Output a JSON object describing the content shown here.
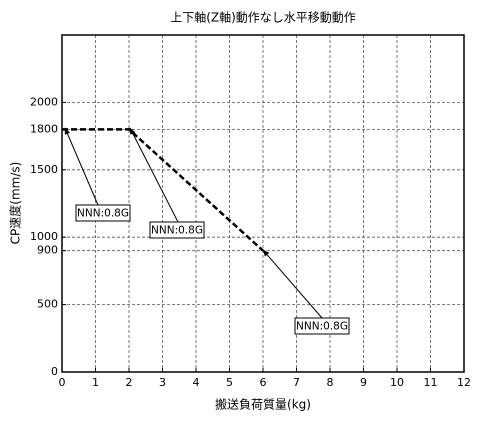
{
  "chart_data": {
    "type": "line",
    "title": "上下軸(Z軸)動作なし水平移動動作",
    "x_label": "搬送負荷質量(kg)",
    "y_label": "CP速度(mm/s)",
    "x": [
      0,
      2,
      6
    ],
    "series": [
      {
        "color": "#000000",
        "values": [
          1800,
          1800,
          900
        ]
      }
    ],
    "xlim": [
      0,
      12
    ],
    "xticks": [
      0,
      1,
      2,
      3,
      4,
      5,
      6,
      7,
      8,
      9,
      10,
      11,
      12
    ],
    "ylim": [
      0,
      2500
    ],
    "yticks": [
      0,
      500,
      900,
      1000,
      1500,
      1800,
      2000
    ],
    "grid": true,
    "annotations": [
      "NNN:0.8G",
      "NNN:0.8G",
      "NNN:0.8G"
    ]
  }
}
